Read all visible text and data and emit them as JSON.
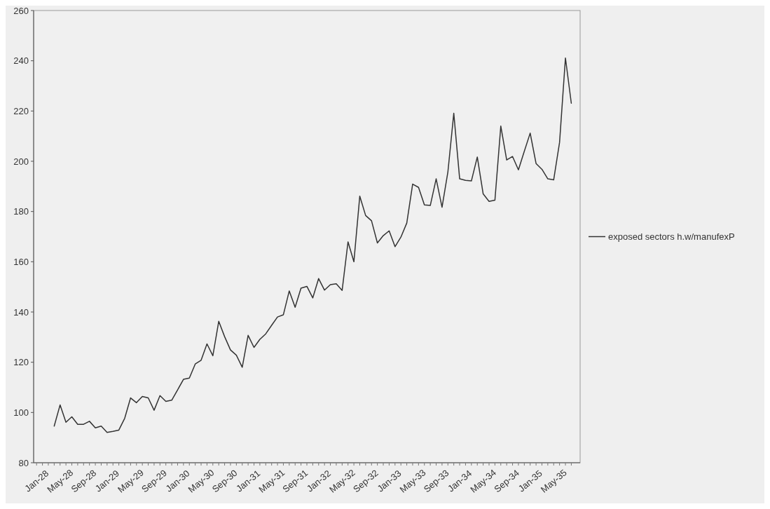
{
  "chart_data": {
    "type": "line",
    "categories": [
      "Jan-28",
      null,
      null,
      null,
      "May-28",
      null,
      null,
      null,
      "Sep-28",
      null,
      null,
      null,
      "Jan-29",
      null,
      null,
      null,
      "May-29",
      null,
      null,
      null,
      "Sep-29",
      null,
      null,
      null,
      "Jan-30",
      null,
      null,
      null,
      "May-30",
      null,
      null,
      null,
      "Sep-30",
      null,
      null,
      null,
      "Jan-31",
      null,
      null,
      null,
      "May-31",
      null,
      null,
      null,
      "Sep-31",
      null,
      null,
      null,
      "Jan-32",
      null,
      null,
      null,
      "May-32",
      null,
      null,
      null,
      "Sep-32",
      null,
      null,
      null,
      "Jan-33",
      null,
      null,
      null,
      "May-33",
      null,
      null,
      null,
      "Sep-33",
      null,
      null,
      null,
      "Jan-34",
      null,
      null,
      null,
      "May-34",
      null,
      null,
      null,
      "Sep-34",
      null,
      null,
      null,
      "Jan-35",
      null,
      null,
      null,
      "May-35",
      null,
      null,
      null
    ],
    "series": [
      {
        "name": "exposed sectors h.w/manufexP",
        "color": "#333333",
        "values": [
          null,
          null,
          null,
          94.6,
          103,
          96.1,
          98.3,
          95.3,
          95.3,
          96.5,
          93.9,
          94.6,
          92.1,
          92.5,
          93.0,
          97.7,
          105.8,
          103.9,
          106.4,
          105.8,
          100.9,
          106.7,
          104.4,
          104.9,
          109.0,
          113.2,
          113.7,
          119.3,
          120.8,
          127.3,
          122.6,
          136.3,
          130.2,
          124.9,
          122.8,
          118.0,
          130.7,
          125.9,
          129.1,
          131.3,
          134.7,
          138.0,
          138.9,
          148.4,
          141.9,
          149.5,
          150.2,
          145.6,
          153.3,
          148.7,
          150.9,
          151.2,
          148.6,
          167.9,
          160.0,
          186.1,
          178.4,
          176.3,
          167.5,
          170.4,
          172.3,
          166.0,
          169.8,
          175.4,
          190.9,
          189.6,
          182.6,
          182.4,
          193.0,
          181.7,
          195.8,
          219.1,
          193.0,
          192.4,
          192.2,
          201.7,
          187.0,
          184.0,
          184.5,
          214.0,
          200.5,
          201.9,
          196.6,
          204,
          211.2,
          199.1,
          196.8,
          193.0,
          192.6,
          207.5,
          241.1,
          223.1
        ]
      }
    ],
    "ylim": [
      80,
      260
    ],
    "yticks": [
      80,
      100,
      120,
      140,
      160,
      180,
      200,
      220,
      240,
      260
    ],
    "grid": false,
    "legend": "right",
    "marker": "none",
    "line_style": "solid"
  }
}
